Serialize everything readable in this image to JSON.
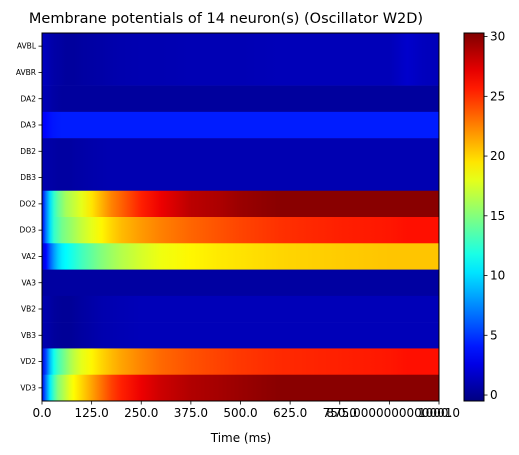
{
  "chart_data": {
    "type": "heatmap",
    "title": "Membrane potentials of 14 neuron(s) (Oscillator W2D)",
    "xlabel": "Time (ms)",
    "ylabel": "",
    "xlim": [
      0,
      1000
    ],
    "x_ticks": [
      "0.0",
      "125.0",
      "250.0",
      "375.0",
      "500.0",
      "625.0",
      "750.0",
      "875.0000000000001",
      "1000.0"
    ],
    "x_tick_values": [
      0,
      125,
      250,
      375,
      500,
      625,
      750,
      875,
      1000
    ],
    "colormap": "jet",
    "colorbar": {
      "range": [
        -0.5,
        30.3
      ],
      "ticks": [
        0,
        5,
        10,
        15,
        20,
        25,
        30
      ]
    },
    "time_points": [
      0,
      10,
      20,
      30,
      40,
      50,
      60,
      70,
      80,
      100,
      125,
      150,
      175,
      200,
      250,
      300,
      375,
      450,
      500,
      600,
      750,
      875,
      920,
      960,
      1000
    ],
    "rows": [
      {
        "name": "AVBL",
        "values": [
          1.5,
          1.2,
          0.9,
          0.7,
          0.6,
          0.5,
          0.4,
          0.4,
          0.4,
          0.5,
          0.6,
          0.7,
          0.8,
          0.9,
          1.0,
          1.0,
          1.1,
          1.1,
          1.1,
          1.2,
          1.2,
          1.2,
          1.8,
          1.4,
          1.2
        ]
      },
      {
        "name": "AVBR",
        "values": [
          1.5,
          1.2,
          0.9,
          0.7,
          0.6,
          0.5,
          0.4,
          0.4,
          0.4,
          0.5,
          0.6,
          0.7,
          0.8,
          0.9,
          1.0,
          1.0,
          1.1,
          1.1,
          1.1,
          1.2,
          1.2,
          1.2,
          1.8,
          1.4,
          1.2
        ]
      },
      {
        "name": "DA2",
        "values": [
          1.2,
          1.0,
          0.8,
          0.6,
          0.5,
          0.4,
          0.4,
          0.4,
          0.4,
          0.4,
          0.4,
          0.4,
          0.4,
          0.4,
          0.4,
          0.4,
          0.4,
          0.4,
          0.4,
          0.4,
          0.4,
          0.4,
          0.4,
          0.4,
          0.4
        ]
      },
      {
        "name": "DA3",
        "values": [
          3.2,
          3.5,
          3.8,
          4.0,
          4.1,
          4.2,
          4.2,
          4.2,
          4.2,
          4.2,
          4.2,
          4.2,
          4.2,
          4.2,
          4.2,
          4.2,
          4.2,
          4.2,
          4.2,
          4.2,
          4.2,
          4.2,
          4.2,
          4.2,
          4.2
        ]
      },
      {
        "name": "DB2",
        "values": [
          1.0,
          0.8,
          0.7,
          0.6,
          0.5,
          0.5,
          0.5,
          0.5,
          0.6,
          0.7,
          0.8,
          0.9,
          1.0,
          1.0,
          1.0,
          1.0,
          1.0,
          1.0,
          1.0,
          1.0,
          1.0,
          1.0,
          1.0,
          1.0,
          1.0
        ]
      },
      {
        "name": "DB3",
        "values": [
          1.0,
          0.8,
          0.7,
          0.6,
          0.5,
          0.5,
          0.5,
          0.5,
          0.6,
          0.7,
          0.8,
          0.9,
          1.0,
          1.0,
          1.0,
          1.0,
          1.0,
          1.0,
          1.0,
          1.0,
          1.0,
          1.0,
          1.0,
          1.0,
          1.0
        ]
      },
      {
        "name": "DO2",
        "values": [
          3.0,
          7.0,
          10.0,
          12.5,
          14.0,
          15.0,
          16.0,
          16.5,
          17.0,
          18.0,
          19.5,
          21.0,
          22.5,
          23.5,
          25.5,
          27.0,
          28.5,
          29.0,
          29.5,
          30.0,
          30.0,
          30.0,
          30.0,
          30.0,
          30.0
        ]
      },
      {
        "name": "DO3",
        "values": [
          3.0,
          7.0,
          10.0,
          12.5,
          13.5,
          14.5,
          15.0,
          15.5,
          16.0,
          17.0,
          18.0,
          19.0,
          20.0,
          20.8,
          21.8,
          22.6,
          23.4,
          24.0,
          24.4,
          25.0,
          25.5,
          25.8,
          26.0,
          26.0,
          26.0
        ]
      },
      {
        "name": "VA2",
        "values": [
          2.0,
          3.5,
          6.0,
          8.0,
          9.5,
          10.5,
          11.0,
          11.5,
          12.0,
          13.0,
          14.0,
          15.0,
          15.8,
          16.5,
          17.5,
          18.3,
          19.0,
          19.4,
          19.6,
          20.0,
          20.3,
          20.5,
          20.5,
          20.5,
          20.5
        ]
      },
      {
        "name": "VA3",
        "values": [
          0.5,
          0.5,
          0.5,
          0.5,
          0.5,
          0.5,
          0.5,
          0.5,
          0.5,
          0.5,
          0.5,
          0.5,
          0.5,
          0.5,
          0.5,
          0.5,
          0.5,
          0.5,
          0.5,
          0.5,
          0.5,
          0.5,
          0.5,
          0.5,
          0.5
        ]
      },
      {
        "name": "VB2",
        "values": [
          1.0,
          0.8,
          0.6,
          0.4,
          0.3,
          0.2,
          0.2,
          0.2,
          0.3,
          0.5,
          0.7,
          0.9,
          1.0,
          1.1,
          1.2,
          1.2,
          1.2,
          1.2,
          1.2,
          1.2,
          1.2,
          1.2,
          1.2,
          1.2,
          1.2
        ]
      },
      {
        "name": "VB3",
        "values": [
          1.0,
          0.8,
          0.6,
          0.4,
          0.3,
          0.2,
          0.2,
          0.2,
          0.3,
          0.5,
          0.7,
          0.9,
          1.0,
          1.1,
          1.2,
          1.2,
          1.2,
          1.2,
          1.2,
          1.2,
          1.2,
          1.2,
          1.2,
          1.2,
          1.2
        ]
      },
      {
        "name": "VD2",
        "values": [
          2.5,
          5.5,
          9.0,
          11.5,
          13.0,
          14.0,
          15.0,
          16.0,
          16.8,
          18.0,
          19.0,
          20.0,
          20.8,
          21.5,
          22.5,
          23.3,
          24.0,
          24.5,
          24.8,
          25.2,
          25.5,
          25.8,
          26.0,
          26.0,
          26.0
        ]
      },
      {
        "name": "VD3",
        "values": [
          3.0,
          7.0,
          10.5,
          13.0,
          15.0,
          16.0,
          17.0,
          18.0,
          18.8,
          20.0,
          21.5,
          23.0,
          24.5,
          25.5,
          27.0,
          28.0,
          28.8,
          29.2,
          29.5,
          30.0,
          30.0,
          30.0,
          30.0,
          30.0,
          30.0
        ]
      }
    ]
  }
}
